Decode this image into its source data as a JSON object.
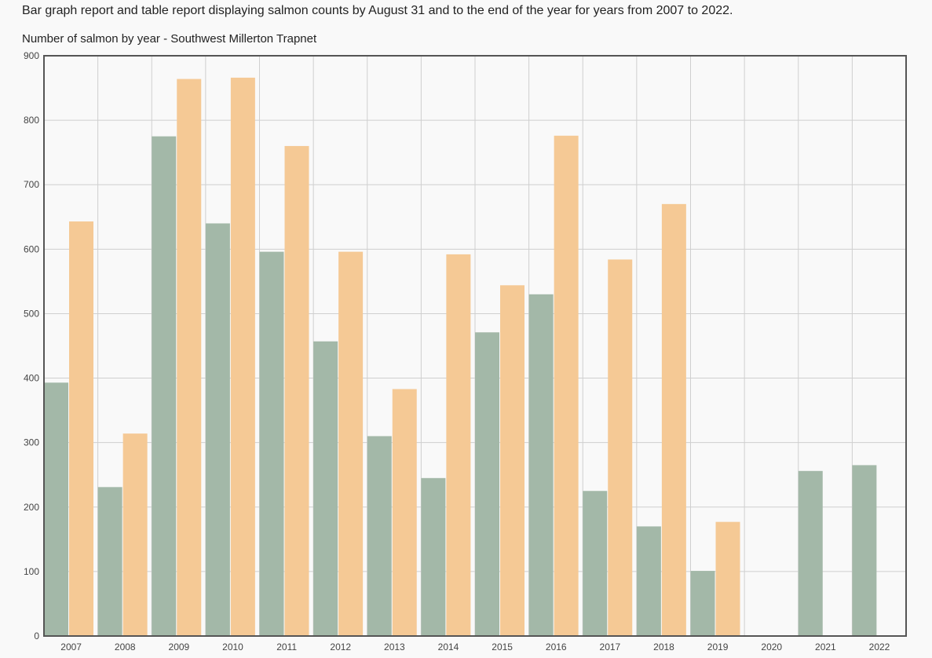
{
  "description": "Bar graph report and table report displaying salmon counts by August 31 and to the end of the year for years from 2007 to 2022.",
  "chart_data": {
    "type": "bar",
    "title": "Number of salmon by year - Southwest Millerton Trapnet",
    "xlabel": "",
    "ylabel": "",
    "ylim": [
      0,
      900
    ],
    "yticks": [
      0,
      100,
      200,
      300,
      400,
      500,
      600,
      700,
      800,
      900
    ],
    "grid": true,
    "categories": [
      "2007",
      "2008",
      "2009",
      "2010",
      "2011",
      "2012",
      "2013",
      "2014",
      "2015",
      "2016",
      "2017",
      "2018",
      "2019",
      "2020",
      "2021",
      "2022"
    ],
    "series": [
      {
        "color": "#a3b8a8",
        "values": [
          393,
          231,
          775,
          640,
          596,
          457,
          310,
          245,
          471,
          530,
          225,
          170,
          101,
          0,
          256,
          265
        ]
      },
      {
        "color": "#f5c995",
        "values": [
          643,
          314,
          864,
          866,
          760,
          596,
          383,
          592,
          544,
          776,
          584,
          670,
          177,
          0,
          0,
          0
        ]
      }
    ]
  }
}
